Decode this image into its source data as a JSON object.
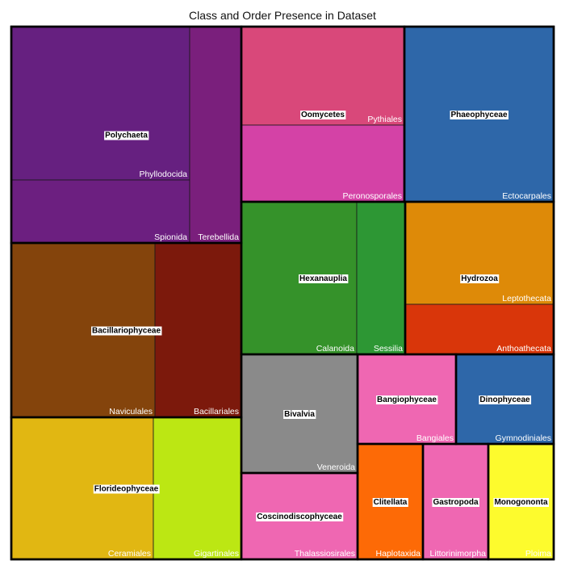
{
  "chart_data": {
    "type": "treemap",
    "title": "Class and Order Presence in Dataset",
    "groups": [
      {
        "class": "Polychaeta",
        "color": "#642280",
        "orders": [
          {
            "name": "Phyllodocida",
            "color": "#662080"
          },
          {
            "name": "Spionida",
            "color": "#6c1f80"
          },
          {
            "name": "Terebellida",
            "color": "#7a1f7c"
          }
        ]
      },
      {
        "class": "Bacillariophyceae",
        "color": "#83420c",
        "orders": [
          {
            "name": "Naviculales",
            "color": "#84440c"
          },
          {
            "name": "Bacillariales",
            "color": "#7c190c"
          }
        ]
      },
      {
        "class": "Florideophyceae",
        "color": "#e0b40c",
        "orders": [
          {
            "name": "Ceramiales",
            "color": "#e1b712"
          },
          {
            "name": "Gigartinales",
            "color": "#bce713"
          }
        ]
      },
      {
        "class": "Oomycetes",
        "color": "#d9487a",
        "orders": [
          {
            "name": "Pythiales",
            "color": "#d9487a"
          },
          {
            "name": "Peronosporales",
            "color": "#d442a6"
          }
        ]
      },
      {
        "class": "Phaeophyceae",
        "color": "#2e67a9",
        "orders": [
          {
            "name": "Ectocarpales",
            "color": "#2e67a9"
          }
        ]
      },
      {
        "class": "Hexanauplia",
        "color": "#35922a",
        "orders": [
          {
            "name": "Calanoida",
            "color": "#35922a"
          },
          {
            "name": "Sessilia",
            "color": "#2d9734"
          }
        ]
      },
      {
        "class": "Hydrozoa",
        "color": "#de8a08",
        "orders": [
          {
            "name": "Leptothecata",
            "color": "#de8a08"
          },
          {
            "name": "Anthoathecata",
            "color": "#d9360a"
          }
        ]
      },
      {
        "class": "Bivalvia",
        "color": "#8a8a8a",
        "orders": [
          {
            "name": "Veneroida",
            "color": "#8a8a8a"
          }
        ]
      },
      {
        "class": "Bangiophyceae",
        "color": "#ef67b2",
        "orders": [
          {
            "name": "Bangiales",
            "color": "#ef67b2"
          }
        ]
      },
      {
        "class": "Dinophyceae",
        "color": "#2e67a9",
        "orders": [
          {
            "name": "Gymnodiniales",
            "color": "#2e67a9"
          }
        ]
      },
      {
        "class": "Coscinodiscophyceae",
        "color": "#ef67b2",
        "orders": [
          {
            "name": "Thalassiosirales",
            "color": "#ef67b2"
          }
        ]
      },
      {
        "class": "Clitellata",
        "color": "#fd6a06",
        "orders": [
          {
            "name": "Haplotaxida",
            "color": "#fd6a06"
          }
        ]
      },
      {
        "class": "Gastropoda",
        "color": "#ef67b2",
        "orders": [
          {
            "name": "Littorinimorpha",
            "color": "#ef67b2"
          }
        ]
      },
      {
        "class": "Monogononta",
        "color": "#fdfb2d",
        "orders": [
          {
            "name": "Ploima",
            "color": "#fdfb2d"
          }
        ]
      }
    ]
  }
}
